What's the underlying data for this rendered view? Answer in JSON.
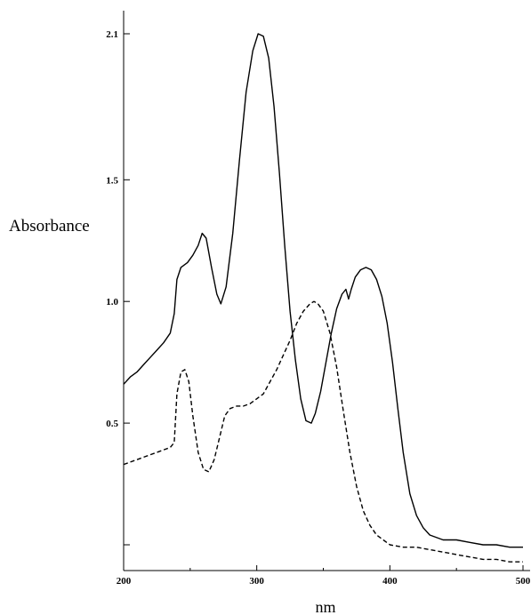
{
  "chart_data": {
    "type": "line",
    "title": "",
    "xlabel": "nm",
    "ylabel": "Absorbance",
    "xlim": [
      200,
      500
    ],
    "ylim": [
      0,
      2.1
    ],
    "x_ticks": [
      200,
      300,
      400,
      500
    ],
    "y_ticks": [
      0.5,
      1.0,
      1.5,
      2.1
    ],
    "x_tick_labels": [
      "200",
      "300",
      "400",
      "500"
    ],
    "y_tick_labels": [
      "0.5",
      "1.0",
      "1.5",
      "2.1"
    ],
    "grid": false,
    "legend": "none",
    "series": [
      {
        "style": "solid",
        "color": "#000000",
        "x": [
          200,
          205,
          210,
          215,
          220,
          225,
          230,
          235,
          238,
          240,
          243,
          248,
          252,
          256,
          259,
          262,
          266,
          270,
          273,
          277,
          282,
          287,
          292,
          297,
          301,
          305,
          309,
          313,
          317,
          321,
          325,
          329,
          333,
          337,
          341,
          344,
          348,
          352,
          356,
          360,
          364,
          367,
          369,
          371,
          374,
          378,
          382,
          386,
          390,
          394,
          398,
          402,
          406,
          410,
          415,
          420,
          425,
          430,
          440,
          450,
          460,
          470,
          480,
          490,
          500
        ],
        "y": [
          0.66,
          0.69,
          0.71,
          0.74,
          0.77,
          0.8,
          0.83,
          0.87,
          0.95,
          1.09,
          1.14,
          1.16,
          1.19,
          1.23,
          1.28,
          1.26,
          1.14,
          1.03,
          0.99,
          1.06,
          1.28,
          1.58,
          1.86,
          2.03,
          2.1,
          2.09,
          2.0,
          1.8,
          1.53,
          1.23,
          0.96,
          0.76,
          0.6,
          0.51,
          0.5,
          0.54,
          0.63,
          0.75,
          0.87,
          0.97,
          1.03,
          1.05,
          1.01,
          1.05,
          1.1,
          1.13,
          1.14,
          1.13,
          1.09,
          1.02,
          0.91,
          0.75,
          0.56,
          0.38,
          0.21,
          0.12,
          0.07,
          0.04,
          0.02,
          0.02,
          0.01,
          0.0,
          -0.0,
          -0.01,
          -0.01
        ]
      },
      {
        "style": "dashed",
        "color": "#000000",
        "x": [
          200,
          205,
          210,
          215,
          220,
          225,
          230,
          235,
          238,
          240,
          243,
          246,
          249,
          252,
          256,
          260,
          264,
          268,
          272,
          276,
          280,
          285,
          290,
          295,
          300,
          305,
          310,
          315,
          320,
          325,
          330,
          335,
          340,
          343,
          346,
          350,
          355,
          360,
          365,
          370,
          375,
          380,
          385,
          390,
          395,
          400,
          410,
          420,
          430,
          440,
          450,
          460,
          470,
          480,
          490,
          500
        ],
        "y": [
          0.33,
          0.34,
          0.35,
          0.36,
          0.37,
          0.38,
          0.39,
          0.4,
          0.42,
          0.62,
          0.71,
          0.72,
          0.67,
          0.53,
          0.38,
          0.31,
          0.3,
          0.35,
          0.44,
          0.53,
          0.56,
          0.57,
          0.57,
          0.58,
          0.6,
          0.62,
          0.67,
          0.72,
          0.78,
          0.84,
          0.91,
          0.96,
          0.99,
          1.0,
          0.99,
          0.96,
          0.87,
          0.73,
          0.55,
          0.38,
          0.24,
          0.14,
          0.08,
          0.04,
          0.02,
          0.0,
          -0.01,
          -0.01,
          -0.02,
          -0.03,
          -0.04,
          -0.05,
          -0.06,
          -0.06,
          -0.07,
          -0.07
        ]
      }
    ]
  }
}
